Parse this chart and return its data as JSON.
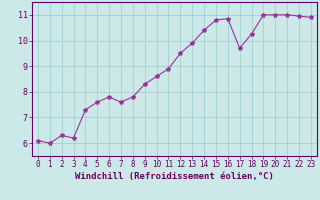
{
  "x": [
    0,
    1,
    2,
    3,
    4,
    5,
    6,
    7,
    8,
    9,
    10,
    11,
    12,
    13,
    14,
    15,
    16,
    17,
    18,
    19,
    20,
    21,
    22,
    23
  ],
  "y": [
    6.1,
    6.0,
    6.3,
    6.2,
    7.3,
    7.6,
    7.8,
    7.6,
    7.8,
    8.3,
    8.6,
    8.9,
    9.5,
    9.9,
    10.4,
    10.8,
    10.85,
    9.7,
    10.25,
    11.0,
    11.0,
    11.0,
    10.95,
    10.9
  ],
  "line_color": "#993399",
  "marker": "*",
  "marker_size": 3,
  "bg_color": "#cce8e8",
  "grid_color": "#99cccc",
  "axis_color": "#660066",
  "xlabel": "Windchill (Refroidissement éolien,°C)",
  "xlabel_fontsize": 6.5,
  "tick_fontsize": 5.5,
  "xlim": [
    -0.5,
    23.5
  ],
  "ylim": [
    5.5,
    11.5
  ],
  "yticks": [
    6,
    7,
    8,
    9,
    10,
    11
  ],
  "xticks": [
    0,
    1,
    2,
    3,
    4,
    5,
    6,
    7,
    8,
    9,
    10,
    11,
    12,
    13,
    14,
    15,
    16,
    17,
    18,
    19,
    20,
    21,
    22,
    23
  ]
}
